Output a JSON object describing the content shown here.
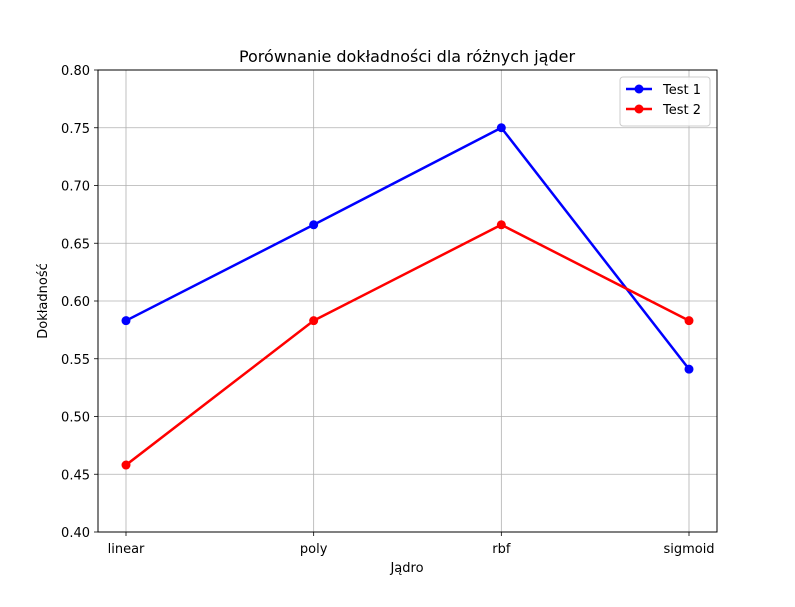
{
  "chart_data": {
    "type": "line",
    "title": "Porównanie dokładności dla różnych jąder",
    "xlabel": "Jądro",
    "ylabel": "Dokładność",
    "categories": [
      "linear",
      "poly",
      "rbf",
      "sigmoid"
    ],
    "ylim": [
      0.4,
      0.8
    ],
    "yticks": [
      "0.40",
      "0.45",
      "0.50",
      "0.55",
      "0.60",
      "0.65",
      "0.70",
      "0.75",
      "0.80"
    ],
    "grid": true,
    "legend_position": "upper right",
    "series": [
      {
        "name": "Test 1",
        "color": "#0000ff",
        "marker": "circle",
        "values": [
          0.583,
          0.666,
          0.75,
          0.541
        ]
      },
      {
        "name": "Test 2",
        "color": "#ff0000",
        "marker": "circle",
        "values": [
          0.458,
          0.583,
          0.666,
          0.583
        ]
      }
    ]
  }
}
